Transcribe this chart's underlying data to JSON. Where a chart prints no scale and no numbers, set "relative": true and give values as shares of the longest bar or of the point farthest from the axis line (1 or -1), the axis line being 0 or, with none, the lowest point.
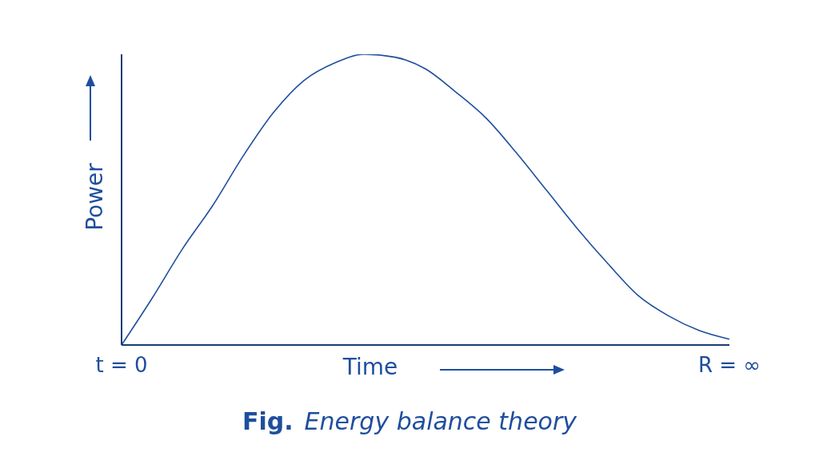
{
  "chart_data": {
    "type": "line",
    "title": "Fig. Energy balance theory",
    "xlabel": "Time",
    "ylabel": "Power",
    "categories": [
      "t = 0",
      null,
      null,
      null,
      null,
      null,
      null,
      null,
      null,
      null,
      null,
      null,
      null,
      null,
      null,
      null,
      null,
      null,
      null,
      null,
      "R = ∞"
    ],
    "series": [
      {
        "color": "#1f4e9e",
        "values": [
          0,
          0.16,
          0.33,
          0.48,
          0.65,
          0.8,
          0.91,
          0.97,
          1.0,
          0.99,
          0.95,
          0.87,
          0.78,
          0.66,
          0.53,
          0.4,
          0.28,
          0.17,
          0.1,
          0.05,
          0.02
        ]
      }
    ],
    "relative": true,
    "grid": false,
    "legend": false,
    "marker": "none",
    "line_style": "solid"
  }
}
